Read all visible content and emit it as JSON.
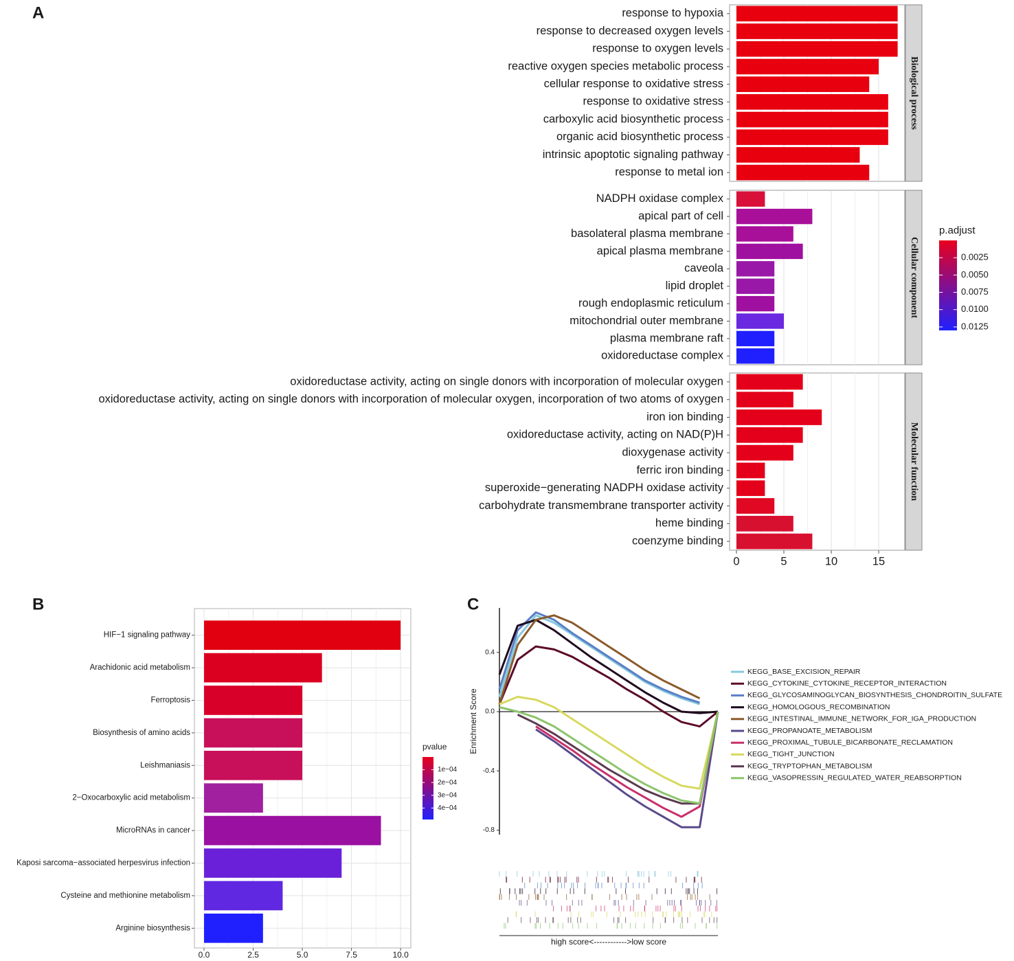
{
  "chart_data": [
    {
      "type": "facet-bar",
      "panel": "A",
      "facets": [
        {
          "name": "Biological process",
          "categories": [
            "response to hypoxia",
            "response to decreased oxygen levels",
            "response to oxygen levels",
            "reactive oxygen species metabolic process",
            "cellular response to oxidative stress",
            "response to oxidative stress",
            "carboxylic acid biosynthetic process",
            "organic acid biosynthetic process",
            "intrinsic apoptotic signaling pathway",
            "response to metal ion"
          ],
          "values": [
            17,
            17,
            17,
            15,
            14,
            16,
            16,
            16,
            13,
            14
          ],
          "colors": [
            "#e8000f",
            "#e8000f",
            "#e8000f",
            "#e8000f",
            "#e8000f",
            "#e8000f",
            "#e8000f",
            "#e8000f",
            "#e8000f",
            "#e8000f"
          ]
        },
        {
          "name": "Cellular component",
          "categories": [
            "NADPH oxidase complex",
            "apical part of cell",
            "basolateral plasma membrane",
            "apical plasma membrane",
            "caveola",
            "lipid droplet",
            "rough endoplasmic reticulum",
            "mitochondrial outer membrane",
            "plasma membrane raft",
            "oxidoreductase complex"
          ],
          "values": [
            3,
            8,
            6,
            7,
            4,
            4,
            4,
            5,
            4,
            4
          ],
          "colors": [
            "#d8103a",
            "#a8109a",
            "#a8109a",
            "#a010a0",
            "#9a18a8",
            "#9a18a8",
            "#a010a0",
            "#6a28e0",
            "#2020ff",
            "#2020ff"
          ]
        },
        {
          "name": "Molecular function",
          "categories": [
            "oxidoreductase activity, acting on single donors with incorporation of molecular oxygen",
            "oxidoreductase activity, acting on single donors with incorporation of molecular oxygen, incorporation of two atoms of oxygen",
            "iron ion binding",
            "oxidoreductase activity, acting on NAD(P)H",
            "dioxygenase activity",
            "ferric iron binding",
            "superoxide−generating NADPH oxidase activity",
            "carbohydrate transmembrane transporter activity",
            "heme binding",
            "coenzyme binding"
          ],
          "values": [
            7,
            6,
            9,
            7,
            6,
            3,
            3,
            4,
            6,
            8
          ],
          "colors": [
            "#e4001a",
            "#e4001a",
            "#e4001a",
            "#e4001a",
            "#e4001a",
            "#e4001a",
            "#e4001a",
            "#e00822",
            "#d81030",
            "#d81030"
          ]
        }
      ],
      "xlim": [
        -0.725,
        17.75
      ],
      "xticks": [
        0,
        5,
        10,
        15
      ],
      "grid": true,
      "colorbar": {
        "title": "p.adjust",
        "lim": [
          0,
          0.013
        ],
        "ticks": [
          0.0025,
          {
            "value": 0.005,
            "label": "0.0050"
          },
          0.0075,
          {
            "value": 0.01,
            "label": "0.0100"
          },
          0.0125
        ],
        "colors": [
          "#e8001c",
          "#2020ff"
        ]
      }
    },
    {
      "type": "bar",
      "panel": "B",
      "categories": [
        "HIF−1 signaling pathway",
        "Arachidonic acid metabolism",
        "Ferroptosis",
        "Biosynthesis of amino acids",
        "Leishmaniasis",
        "2−Oxocarboxylic acid metabolism",
        "MicroRNAs in cancer",
        "Kaposi sarcoma−associated herpesvirus infection",
        "Cysteine and methionine metabolism",
        "Arginine biosynthesis"
      ],
      "values": [
        10,
        6,
        5,
        5,
        5,
        3,
        9,
        7,
        4,
        3
      ],
      "colors": [
        "#e00010",
        "#dc0020",
        "#d80028",
        "#c8105a",
        "#c8105a",
        "#a020a0",
        "#9a10a0",
        "#6a20d8",
        "#6028e0",
        "#2020ff"
      ],
      "xlim": [
        -0.49,
        10.52
      ],
      "xticks": [
        {
          "value": 0,
          "label": "0.0"
        },
        2.5,
        {
          "value": 5,
          "label": "5.0"
        },
        7.5,
        {
          "value": 10,
          "label": "10.0"
        }
      ],
      "grid": true,
      "colorbar": {
        "title": "pvalue",
        "lim": [
          0,
          0.00049
        ],
        "ticks": [
          {
            "value": 0.0001,
            "label": "1e−04"
          },
          {
            "value": 0.0002,
            "label": "2e−04"
          },
          {
            "value": 0.0003,
            "label": "3e−04"
          },
          {
            "value": 0.0004,
            "label": "4e−04"
          }
        ],
        "colors": [
          "#e8001c",
          "#2020ff"
        ]
      }
    },
    {
      "type": "line",
      "panel": "C",
      "ylabel": "Enrichment Score",
      "xlabel": "high score<------------>low score",
      "ylim": [
        -0.83,
        0.7
      ],
      "yticks": [
        -0.8,
        -0.4,
        {
          "value": 0,
          "label": "0.0"
        },
        0.4
      ],
      "legend": "right",
      "series": [
        {
          "name": "KEGG_BASE_EXCISION_REPAIR",
          "color": "#86c8de",
          "values": [
            0.1,
            0.5,
            0.65,
            0.6,
            0.52,
            0.44,
            0.36,
            0.28,
            0.2,
            0.14,
            0.09,
            0.05,
            null
          ]
        },
        {
          "name": "KEGG_CYTOKINE_CYTOKINE_RECEPTOR_INTERACTION",
          "color": "#5c0a28",
          "values": [
            0.05,
            0.35,
            0.44,
            0.42,
            0.37,
            0.3,
            0.23,
            0.15,
            0.08,
            0.0,
            -0.07,
            -0.1,
            0.0
          ]
        },
        {
          "name": "KEGG_GLYCOSAMINOGLYCAN_BIOSYNTHESIS_CHONDROITIN_SULFATE",
          "color": "#5b7fc7",
          "values": [
            0.15,
            0.55,
            0.67,
            0.62,
            0.53,
            0.45,
            0.37,
            0.29,
            0.21,
            0.15,
            0.1,
            0.06,
            null
          ]
        },
        {
          "name": "KEGG_HOMOLOGOUS_RECOMBINATION",
          "color": "#1e0a1e",
          "values": [
            0.25,
            0.58,
            0.62,
            0.55,
            0.46,
            0.37,
            0.29,
            0.21,
            0.13,
            0.06,
            0.0,
            -0.01,
            0.0
          ]
        },
        {
          "name": "KEGG_INTESTINAL_IMMUNE_NETWORK_FOR_IGA_PRODUCTION",
          "color": "#8b5a2b",
          "values": [
            0.05,
            0.45,
            0.62,
            0.65,
            0.6,
            0.52,
            0.44,
            0.36,
            0.28,
            0.21,
            0.15,
            0.09,
            null
          ]
        },
        {
          "name": "KEGG_PROPANOATE_METABOLISM",
          "color": "#5b4a8b",
          "values": [
            null,
            null,
            -0.12,
            -0.2,
            -0.29,
            -0.38,
            -0.47,
            -0.56,
            -0.64,
            -0.71,
            -0.78,
            -0.78,
            0.0
          ]
        },
        {
          "name": "KEGG_PROXIMAL_TUBULE_BICARBONATE_RECLAMATION",
          "color": "#c8306a",
          "values": [
            null,
            null,
            -0.1,
            -0.18,
            -0.26,
            -0.35,
            -0.43,
            -0.51,
            -0.58,
            -0.65,
            -0.71,
            -0.64,
            0.0
          ]
        },
        {
          "name": "KEGG_TIGHT_JUNCTION",
          "color": "#d8d860",
          "values": [
            0.05,
            0.1,
            0.08,
            0.03,
            -0.05,
            -0.13,
            -0.21,
            -0.29,
            -0.37,
            -0.44,
            -0.5,
            -0.52,
            0.0
          ]
        },
        {
          "name": "KEGG_TRYPTOPHAN_METABOLISM",
          "color": "#5a3a50",
          "values": [
            null,
            -0.02,
            -0.08,
            -0.15,
            -0.23,
            -0.31,
            -0.39,
            -0.46,
            -0.53,
            -0.58,
            -0.62,
            -0.62,
            0.0
          ]
        },
        {
          "name": "KEGG_VASOPRESSIN_REGULATED_WATER_REABSORPTION",
          "color": "#8cc46c",
          "values": [
            0.03,
            0.0,
            -0.04,
            -0.1,
            -0.18,
            -0.26,
            -0.34,
            -0.42,
            -0.49,
            -0.55,
            -0.6,
            -0.62,
            0.0
          ]
        }
      ]
    }
  ]
}
